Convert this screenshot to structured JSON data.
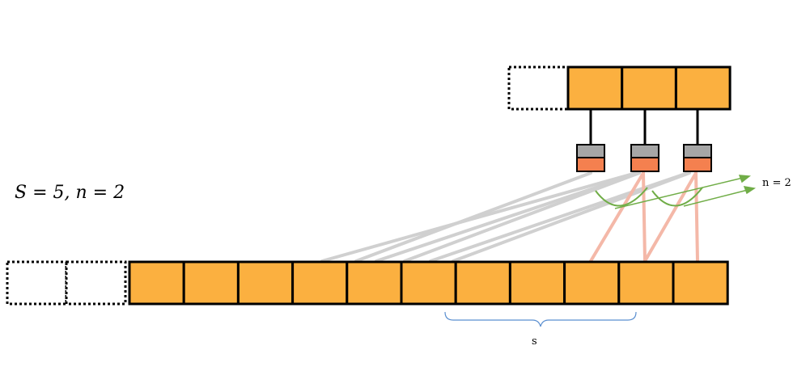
{
  "equation": "S = 5, n = 2",
  "n_annotation": "n = 2",
  "brace_label": "s",
  "input_sequence": {
    "padding_cells": 2,
    "cells": 11
  },
  "output_sequence": {
    "padding_cells": 1,
    "cells": 3
  },
  "kernels": 3,
  "colors": {
    "cell_fill": "#FBB040",
    "cell_border": "#000000",
    "kernel_top": "#A6A6A6",
    "kernel_bottom": "#F4804F",
    "connection_gray": "#D0D0D0",
    "connection_pink": "#F4B8A8",
    "arc_green": "#70AD47",
    "brace_blue": "#5B8FD0"
  }
}
